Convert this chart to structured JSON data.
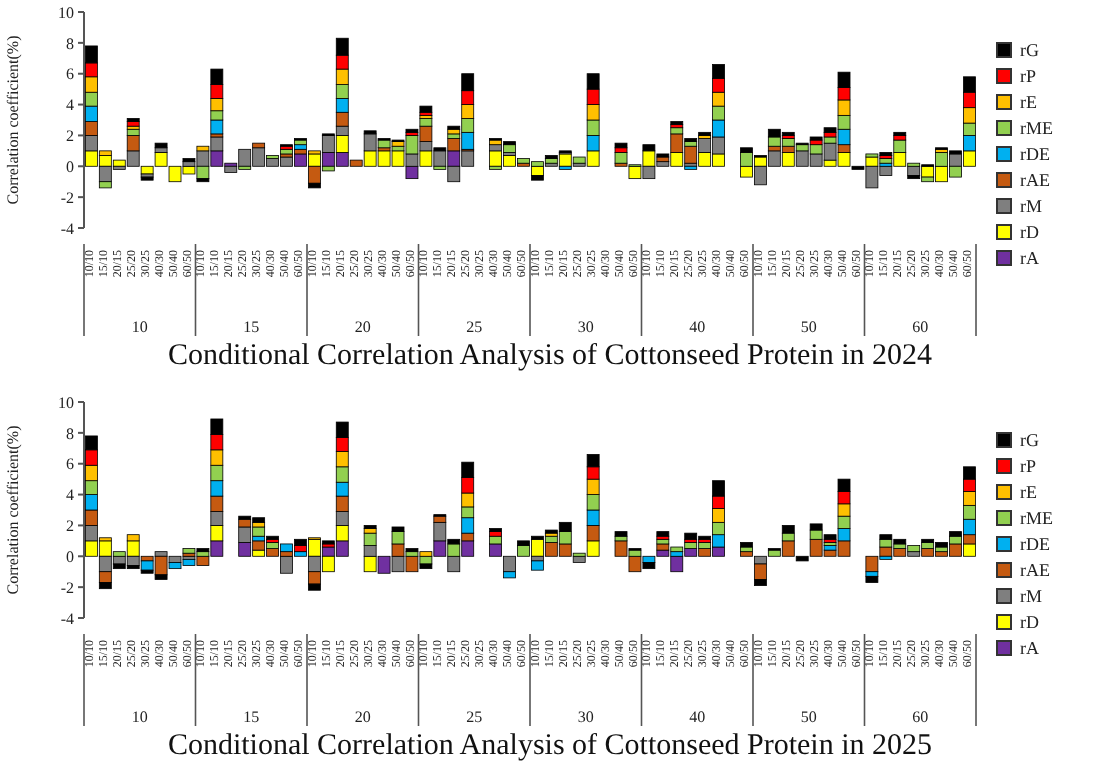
{
  "chart_data": [
    {
      "type": "bar",
      "stacked": true,
      "title": "Conditional Correlation Analysis of Cottonseed Protein in 2024",
      "ylabel": "Correlation coefficient(%)",
      "ylim": [
        -4,
        10
      ],
      "yticks": [
        -4,
        -2,
        0,
        2,
        4,
        6,
        8,
        10
      ],
      "legend": "right",
      "annotations": [
        "10",
        "15",
        "20",
        "25",
        "30",
        "40",
        "50",
        "60"
      ],
      "categories": [
        "10/10",
        "15/10",
        "20/15",
        "25/20",
        "30/25",
        "40/30",
        "50/40",
        "60/50",
        "10/10",
        "15/10",
        "20/15",
        "25/20",
        "30/25",
        "40/30",
        "50/40",
        "60/50",
        "10/10",
        "15/10",
        "20/15",
        "25/20",
        "30/25",
        "40/30",
        "50/40",
        "60/50",
        "10/10",
        "15/10",
        "20/15",
        "25/20",
        "30/25",
        "40/30",
        "50/40",
        "60/50",
        "10/10",
        "15/10",
        "20/15",
        "25/20",
        "30/25",
        "40/30",
        "50/40",
        "60/50",
        "10/10",
        "15/10",
        "20/15",
        "25/20",
        "30/25",
        "40/30",
        "50/40",
        "60/50",
        "10/10",
        "15/10",
        "20/15",
        "25/20",
        "30/25",
        "40/30",
        "50/40",
        "60/50",
        "10/10",
        "15/10",
        "20/15",
        "25/20",
        "30/25",
        "40/30",
        "50/40",
        "60/50"
      ],
      "series": [
        {
          "name": "rA",
          "color": "#7030a0",
          "values": [
            0,
            0,
            0,
            0,
            0,
            0,
            0,
            0,
            0,
            1,
            0.2,
            0,
            0,
            0,
            0,
            0.8,
            0,
            0.9,
            0.9,
            0,
            0,
            0,
            0,
            -0.8,
            0,
            0,
            1,
            0,
            0,
            0,
            0,
            0,
            0,
            0,
            0,
            0,
            0,
            0,
            0,
            0,
            0,
            0,
            0,
            0,
            0,
            0,
            0,
            0,
            0,
            0,
            0,
            0,
            0,
            0,
            0,
            0,
            0,
            0,
            0,
            0,
            0,
            0,
            0,
            0
          ]
        },
        {
          "name": "rD",
          "color": "#ffff00",
          "values": [
            1,
            0.7,
            0.4,
            0,
            -0.5,
            0.9,
            -1,
            -0.5,
            0,
            0,
            0,
            0,
            0,
            0,
            0,
            0,
            0.8,
            0,
            1.1,
            0,
            1,
            1,
            1,
            0,
            1,
            0,
            0,
            0,
            0,
            1,
            0.7,
            0,
            -0.6,
            0,
            0.8,
            0,
            1,
            0,
            0,
            -0.8,
            1,
            0,
            0.9,
            0,
            0.9,
            0.8,
            0,
            -0.7,
            0.6,
            0,
            0.9,
            0,
            0,
            0.4,
            0.9,
            0,
            0.6,
            0,
            0.9,
            0,
            -0.7,
            -1,
            0,
            1
          ]
        },
        {
          "name": "rM",
          "color": "#7f7f7f",
          "values": [
            1,
            -1,
            -0.2,
            1,
            -0.2,
            0.3,
            0,
            0.3,
            1,
            0.9,
            -0.4,
            1.1,
            1.2,
            0.5,
            0.6,
            0,
            0,
            1.1,
            0.6,
            0,
            1.1,
            0,
            0,
            0.8,
            0.6,
            1,
            -1,
            1,
            0,
            0.4,
            0.2,
            0,
            0,
            0.2,
            0.1,
            0.2,
            0,
            0,
            0,
            0,
            -0.8,
            0.3,
            0,
            0.2,
            0.9,
            1.1,
            0,
            0,
            -1.2,
            1,
            0,
            1,
            0.8,
            1.1,
            0,
            0,
            -1.4,
            -0.6,
            0,
            -0.6,
            0,
            0,
            0.8,
            0
          ]
        },
        {
          "name": "rAE",
          "color": "#c55a11",
          "values": [
            0.9,
            0,
            0,
            1,
            0,
            0,
            0,
            0,
            0,
            0.2,
            0,
            0,
            0.3,
            0,
            0.2,
            0.3,
            -1.1,
            0,
            0.9,
            0.4,
            0,
            0.2,
            0,
            0,
            1,
            0,
            0.8,
            0.1,
            0,
            0,
            0,
            0.2,
            0,
            0,
            0,
            0,
            0,
            0,
            0.2,
            0,
            0,
            0.3,
            1.2,
            1.1,
            0,
            0,
            0,
            0,
            0,
            0.3,
            0.4,
            0,
            0,
            0,
            0.5,
            0,
            0,
            0,
            0,
            0,
            0,
            0,
            0,
            0
          ]
        },
        {
          "name": "rDE",
          "color": "#00b0f0",
          "values": [
            1,
            0,
            0,
            0,
            0,
            0,
            0,
            0,
            0,
            0.9,
            0,
            0,
            0,
            0,
            0,
            0.3,
            0,
            0,
            0.9,
            0,
            0,
            0,
            0,
            0,
            0,
            0,
            0,
            1.1,
            0,
            0,
            0,
            0,
            0,
            0,
            -0.2,
            0,
            1,
            0,
            0,
            0,
            0,
            0,
            0,
            -0.2,
            0,
            1.1,
            0,
            0,
            0,
            0,
            0,
            0,
            0,
            0,
            1,
            0,
            0,
            0.2,
            0,
            0,
            0,
            0,
            0,
            1
          ]
        },
        {
          "name": "rME",
          "color": "#92d050",
          "values": [
            0.9,
            -0.4,
            0,
            0.4,
            0,
            0,
            0,
            0,
            -0.8,
            0.6,
            0,
            -0.2,
            0,
            0.2,
            0.3,
            0.3,
            0,
            -0.3,
            0.9,
            0,
            0,
            0.5,
            0.3,
            1.2,
            0.5,
            -0.2,
            0.3,
            0.9,
            0,
            -0.2,
            0.5,
            0.3,
            0.3,
            0.3,
            0,
            0.4,
            1,
            0,
            0.7,
            0.1,
            0,
            0,
            0.4,
            0.3,
            0,
            0.9,
            0,
            0.9,
            0,
            0.6,
            0.5,
            0.4,
            0.6,
            0.4,
            0.9,
            0,
            0.2,
            0.3,
            0.8,
            0.2,
            -0.3,
            0.9,
            -0.7,
            0.8
          ]
        },
        {
          "name": "rE",
          "color": "#ffc000",
          "values": [
            1,
            0.3,
            0,
            0.2,
            0,
            0,
            0,
            0,
            0.3,
            0.8,
            0,
            0,
            0,
            0,
            0,
            0,
            0.2,
            0,
            1,
            0,
            0,
            0,
            0.3,
            0,
            0.2,
            0,
            0.3,
            0.9,
            0,
            0.3,
            0,
            0,
            0,
            0,
            0,
            0,
            1,
            0,
            0,
            0,
            0,
            0,
            0,
            0,
            0.2,
            0.9,
            0,
            0,
            0,
            0,
            0,
            0,
            0,
            0,
            1,
            0,
            0,
            0,
            0,
            0,
            0,
            0.2,
            0,
            1
          ]
        },
        {
          "name": "rP",
          "color": "#ff0000",
          "values": [
            0.9,
            0,
            0,
            0.3,
            0,
            0,
            0,
            0,
            0,
            0.9,
            0,
            0,
            0,
            0,
            0.2,
            0,
            0,
            0,
            0.9,
            0,
            0,
            0,
            0,
            0.2,
            0.2,
            0,
            0,
            0.9,
            0,
            0,
            0,
            0,
            0,
            0,
            0,
            0,
            1,
            0,
            0.3,
            0,
            0,
            0,
            0.2,
            0,
            0,
            0.9,
            0,
            0,
            0,
            0,
            0.2,
            0,
            0.3,
            0.3,
            0.8,
            0,
            0,
            0.2,
            0.3,
            0,
            0,
            0,
            0,
            1
          ]
        },
        {
          "name": "rG",
          "color": "#000000",
          "values": [
            1.1,
            0,
            0,
            0.2,
            -0.2,
            0.3,
            0,
            0.2,
            -0.2,
            1,
            0,
            0,
            0,
            0,
            0.1,
            0.1,
            -0.3,
            0.1,
            1.1,
            0,
            0.2,
            0.1,
            0.1,
            0.2,
            0.4,
            0.2,
            0.2,
            1.1,
            0,
            0.1,
            0.2,
            0,
            -0.3,
            0.2,
            0.1,
            0,
            1,
            0,
            0.3,
            0,
            0.4,
            0.2,
            0.2,
            0.2,
            0.2,
            0.9,
            0,
            0.3,
            0.1,
            0.5,
            0.2,
            0.1,
            0.2,
            0.3,
            1,
            -0.2,
            0,
            0.2,
            0.2,
            -0.2,
            0.1,
            0.1,
            0.2,
            1
          ]
        }
      ]
    },
    {
      "type": "bar",
      "stacked": true,
      "title": "Conditional Correlation Analysis of Cottonseed Protein in 2025",
      "ylabel": "Correlation coefficient(%)",
      "ylim": [
        -4,
        10
      ],
      "yticks": [
        -4,
        -2,
        0,
        2,
        4,
        6,
        8,
        10
      ],
      "legend": "right",
      "annotations": [
        "10",
        "15",
        "20",
        "25",
        "30",
        "40",
        "50",
        "60"
      ],
      "categories": [
        "10/10",
        "15/10",
        "20/15",
        "25/20",
        "30/25",
        "40/30",
        "50/40",
        "60/50",
        "10/10",
        "15/10",
        "20/15",
        "25/20",
        "30/25",
        "40/30",
        "50/40",
        "60/50",
        "10/10",
        "15/10",
        "20/15",
        "25/20",
        "30/25",
        "40/30",
        "50/40",
        "60/50",
        "10/10",
        "15/10",
        "20/15",
        "25/20",
        "30/25",
        "40/30",
        "50/40",
        "60/50",
        "10/10",
        "15/10",
        "20/15",
        "25/20",
        "30/25",
        "40/30",
        "50/40",
        "60/50",
        "10/10",
        "15/10",
        "20/15",
        "25/20",
        "30/25",
        "40/30",
        "50/40",
        "60/50",
        "10/10",
        "15/10",
        "20/15",
        "25/20",
        "30/25",
        "40/30",
        "50/40",
        "60/50",
        "10/10",
        "15/10",
        "20/15",
        "25/20",
        "30/25",
        "40/30",
        "50/40",
        "60/50"
      ],
      "series": [
        {
          "name": "rA",
          "color": "#7030a0",
          "values": [
            0,
            0,
            0,
            0,
            0,
            0,
            0,
            0,
            0,
            1,
            0,
            0.9,
            0,
            0,
            0,
            0,
            0,
            0.6,
            1,
            0,
            0,
            -1.1,
            0,
            0,
            0,
            1,
            0,
            1,
            0,
            0.8,
            0,
            0,
            0,
            0,
            0,
            0,
            0,
            0,
            0,
            0,
            0,
            0.4,
            -1,
            0.5,
            0,
            0.6,
            0,
            0,
            0,
            0,
            0,
            0,
            0,
            0,
            0,
            0,
            0,
            0,
            0,
            0,
            0,
            0,
            0,
            0
          ]
        },
        {
          "name": "rD",
          "color": "#ffff00",
          "values": [
            1,
            1,
            0,
            1,
            0,
            0,
            0,
            0,
            0,
            1,
            0,
            0,
            0.4,
            0,
            0,
            0,
            1.1,
            -1,
            1,
            0,
            -1,
            0,
            0,
            0,
            0,
            0,
            0,
            0,
            0,
            0,
            0,
            0,
            1.1,
            0,
            0,
            0,
            1,
            0,
            0,
            0,
            0,
            0,
            0,
            0,
            0,
            0,
            0,
            0,
            0,
            0,
            0,
            0,
            0,
            0,
            0,
            0,
            0,
            0,
            0,
            0,
            0,
            0,
            0,
            0.8
          ]
        },
        {
          "name": "rM",
          "color": "#7f7f7f",
          "values": [
            1,
            -1,
            -0.5,
            -0.6,
            0,
            0.3,
            -0.4,
            -0.2,
            0,
            0.9,
            0,
            1,
            0,
            0,
            -1.1,
            0,
            -1,
            0,
            0.9,
            0,
            0.7,
            0,
            -1,
            0,
            0,
            1.2,
            -1,
            0,
            0,
            0,
            -1,
            0,
            -0.3,
            0,
            0,
            -0.4,
            0,
            0,
            0,
            0,
            0,
            0,
            0,
            0,
            0,
            0,
            0,
            0,
            -0.5,
            0,
            0,
            0,
            0,
            0,
            0,
            0,
            0,
            0,
            0,
            0.3,
            0,
            0,
            0,
            0
          ]
        },
        {
          "name": "rAE",
          "color": "#c55a11",
          "values": [
            1,
            -0.7,
            0,
            0,
            -0.3,
            -1.2,
            0,
            0.2,
            -0.6,
            1,
            0,
            0.5,
            0.6,
            0.5,
            0.3,
            0,
            -0.8,
            0,
            1,
            0,
            0,
            0,
            0.8,
            -1,
            0,
            0.4,
            0,
            0.5,
            0,
            0,
            0,
            0,
            0,
            0.9,
            0.8,
            0,
            1,
            0,
            1,
            -1,
            0,
            0.4,
            0,
            0,
            0.5,
            0,
            0,
            0.3,
            -1,
            0,
            1,
            0,
            1.1,
            0.4,
            1,
            0,
            -1,
            0.6,
            0.5,
            0,
            0.5,
            0.3,
            0.8,
            0.6
          ]
        },
        {
          "name": "rDE",
          "color": "#00b0f0",
          "values": [
            1,
            0,
            0,
            0,
            -0.6,
            0,
            -0.4,
            -0.4,
            0,
            1,
            0,
            0,
            0.3,
            0,
            0.5,
            0.3,
            0,
            0,
            0.9,
            0,
            0,
            0,
            0,
            0,
            0,
            0,
            0,
            1,
            0,
            0,
            -0.4,
            0,
            -0.6,
            0,
            0,
            0,
            1,
            0,
            0,
            0,
            -0.4,
            0,
            0.3,
            0,
            0,
            0.8,
            0,
            0,
            0,
            0,
            0,
            0,
            0,
            0.3,
            0.8,
            0,
            -0.3,
            -0.2,
            0,
            0,
            0,
            0,
            0,
            1
          ]
        },
        {
          "name": "rME",
          "color": "#92d050",
          "values": [
            0.9,
            0,
            0.3,
            0,
            0,
            0,
            0,
            0.3,
            0.3,
            1,
            0,
            0,
            0.6,
            0.4,
            0,
            0,
            0,
            0,
            1,
            0,
            0.8,
            0,
            0.8,
            0.3,
            -0.5,
            0,
            0.8,
            0.7,
            0,
            0.5,
            0,
            0.7,
            0,
            0.4,
            0.8,
            0.2,
            1,
            0,
            0.3,
            0.4,
            0,
            0.3,
            0.3,
            0.4,
            0.4,
            0.8,
            0,
            0.3,
            0,
            0.4,
            0.5,
            0,
            0.6,
            0.2,
            0.8,
            0,
            0,
            0.5,
            0.3,
            0.4,
            0.4,
            0.3,
            0.5,
            0.9
          ]
        },
        {
          "name": "rE",
          "color": "#ffc000",
          "values": [
            1,
            0.2,
            0,
            0.4,
            0,
            0,
            0,
            0,
            0,
            1,
            0,
            0,
            0.3,
            0,
            0,
            0,
            0.1,
            0,
            1,
            0,
            0.3,
            0,
            0,
            0,
            0.3,
            0,
            0,
            0.9,
            0,
            0,
            0,
            0,
            0,
            0.2,
            0,
            0,
            1,
            0,
            0,
            0,
            0,
            0,
            0,
            0,
            0,
            0.9,
            0,
            0,
            0,
            0,
            0,
            0,
            0,
            0,
            0.8,
            0,
            0,
            0,
            0,
            0,
            0,
            0,
            0,
            0.9
          ]
        },
        {
          "name": "rP",
          "color": "#ff0000",
          "values": [
            1,
            0,
            0,
            0,
            0,
            0,
            0,
            0,
            0,
            1,
            0,
            0,
            0,
            0.2,
            0,
            0.4,
            0,
            0.2,
            0.9,
            0,
            0,
            0,
            0,
            0,
            0,
            0,
            0,
            1,
            0,
            0.3,
            0,
            0,
            0,
            0,
            0,
            0,
            0.8,
            0,
            0,
            0,
            0,
            0.2,
            0,
            0.2,
            0.2,
            0.8,
            0,
            0,
            0,
            0,
            0,
            0,
            0,
            0.2,
            0.8,
            0,
            0,
            0,
            0,
            0,
            0,
            0,
            0,
            0.8
          ]
        },
        {
          "name": "rG",
          "color": "#000000",
          "values": [
            0.9,
            -0.4,
            -0.3,
            -0.2,
            -0.2,
            -0.3,
            0,
            0,
            0.2,
            1,
            0,
            0.2,
            0.3,
            0.2,
            0,
            0.4,
            -0.4,
            0.2,
            1,
            0,
            0.2,
            0,
            0.3,
            0.2,
            -0.3,
            0.1,
            0.3,
            1,
            0,
            0.2,
            0,
            0.3,
            0.2,
            0.2,
            0.6,
            0,
            0.8,
            0,
            0.3,
            0.1,
            -0.4,
            0.3,
            0,
            0.4,
            0.2,
            1,
            0,
            0.3,
            -0.4,
            0.1,
            0.5,
            -0.3,
            0.4,
            0.3,
            0.8,
            0,
            -0.4,
            0.3,
            0.3,
            0,
            0.2,
            0.3,
            0.3,
            0.8
          ]
        }
      ]
    }
  ]
}
